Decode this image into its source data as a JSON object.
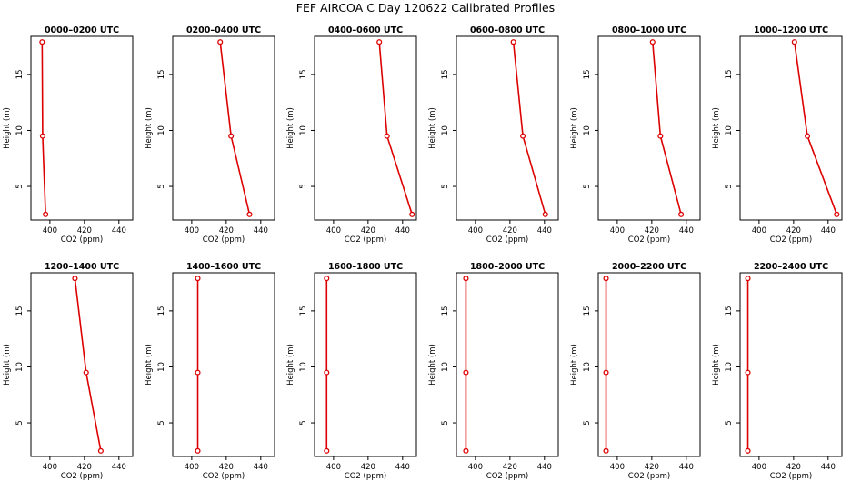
{
  "title": "FEF AIRCOA C  Day 120622  Calibrated Profiles",
  "colors": {
    "line": "#dd0000",
    "marker": "#dd0000",
    "axis": "#000000"
  },
  "chart_data": {
    "type": "line",
    "xlabel": "CO2 (ppm)",
    "ylabel": "Height (m)",
    "xlim": [
      389,
      448
    ],
    "ylim": [
      2.0,
      18.4
    ],
    "xticks": [
      400,
      420,
      440
    ],
    "yticks": [
      5,
      10,
      15
    ],
    "heights": [
      17.9,
      9.5,
      2.5
    ],
    "panels": [
      {
        "title": "0000–0200 UTC",
        "co2": [
          395.5,
          395.8,
          397.5
        ]
      },
      {
        "title": "0200–0400 UTC",
        "co2": [
          416.5,
          422.8,
          433.5
        ]
      },
      {
        "title": "0400–0600 UTC",
        "co2": [
          426.5,
          431.0,
          445.5
        ]
      },
      {
        "title": "0600–0800 UTC",
        "co2": [
          422.0,
          427.5,
          440.5
        ]
      },
      {
        "title": "0800–1000 UTC",
        "co2": [
          420.5,
          425.0,
          437.0
        ]
      },
      {
        "title": "1000–1200 UTC",
        "co2": [
          420.5,
          428.0,
          445.0
        ]
      },
      {
        "title": "1200–1400 UTC",
        "co2": [
          414.5,
          421.0,
          429.5
        ]
      },
      {
        "title": "1400–1600 UTC",
        "co2": [
          403.5,
          403.5,
          403.5
        ]
      },
      {
        "title": "1600–1800 UTC",
        "co2": [
          396.0,
          396.0,
          396.0
        ]
      },
      {
        "title": "1800–2000 UTC",
        "co2": [
          394.5,
          394.5,
          394.5
        ]
      },
      {
        "title": "2000–2200 UTC",
        "co2": [
          393.5,
          393.5,
          393.5
        ]
      },
      {
        "title": "2200–2400 UTC",
        "co2": [
          393.5,
          393.5,
          393.5
        ]
      }
    ]
  }
}
